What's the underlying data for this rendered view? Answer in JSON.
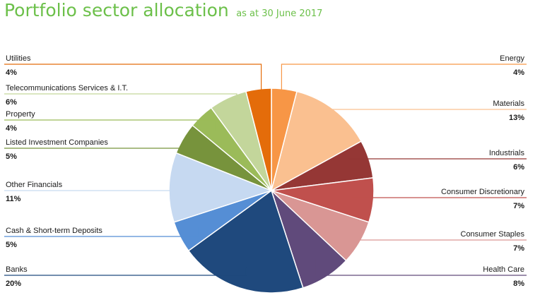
{
  "header": {
    "title": "Portfolio sector allocation",
    "subtitle": "as at 30 June 2017"
  },
  "chart_data": {
    "type": "pie",
    "title": "Portfolio sector allocation",
    "subtitle": "as at 30 June 2017",
    "unit": "%",
    "slices": [
      {
        "name": "Energy",
        "value": 4,
        "label": "4%",
        "color": "#f79646",
        "side": "right"
      },
      {
        "name": "Materials",
        "value": 13,
        "label": "13%",
        "color": "#fac090",
        "side": "right"
      },
      {
        "name": "Industrials",
        "value": 6,
        "label": "6%",
        "color": "#953735",
        "side": "right"
      },
      {
        "name": "Consumer Discretionary",
        "value": 7,
        "label": "7%",
        "color": "#c0504d",
        "side": "right"
      },
      {
        "name": "Consumer Staples",
        "value": 7,
        "label": "7%",
        "color": "#d99694",
        "side": "right"
      },
      {
        "name": "Health Care",
        "value": 8,
        "label": "8%",
        "color": "#604a7b",
        "side": "right"
      },
      {
        "name": "Banks",
        "value": 20,
        "label": "20%",
        "color": "#1f497d",
        "side": "left"
      },
      {
        "name": "Cash & Short-term Deposits",
        "value": 5,
        "label": "5%",
        "color": "#558ed5",
        "side": "left"
      },
      {
        "name": "Other Financials",
        "value": 11,
        "label": "11%",
        "color": "#c6d9f1",
        "side": "left"
      },
      {
        "name": "Listed Investment Companies",
        "value": 5,
        "label": "5%",
        "color": "#77933c",
        "side": "left"
      },
      {
        "name": "Property",
        "value": 4,
        "label": "4%",
        "color": "#9bbb59",
        "side": "left"
      },
      {
        "name": "Telecommunications Services & I.T.",
        "value": 6,
        "label": "6%",
        "color": "#c3d69b",
        "side": "left"
      },
      {
        "name": "Utilities",
        "value": 4,
        "label": "4%",
        "color": "#e46c0a",
        "side": "left"
      }
    ]
  }
}
